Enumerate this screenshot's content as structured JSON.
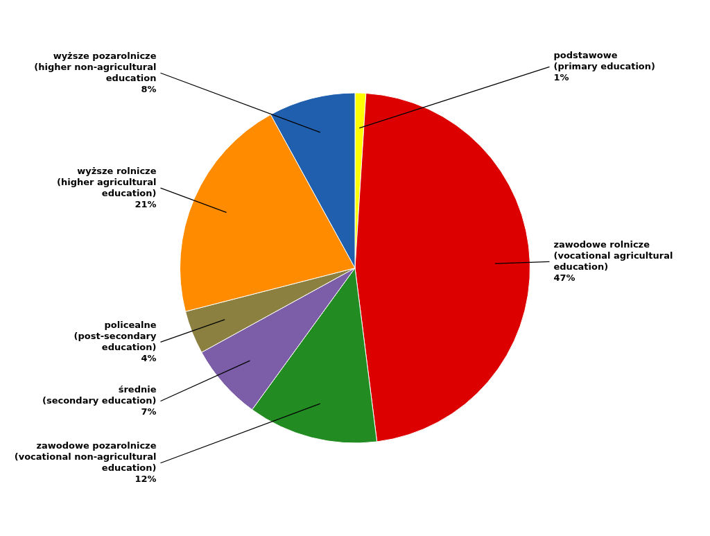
{
  "chart_data": {
    "type": "pie",
    "categories": [
      "podstawowe\n(primary education)\n1%",
      "zawodowe rolnicze\n(vocational agricultural\neducation)\n47%",
      "zawodowe pozarolnicze\n(vocational non-agricultural\neducation)\n12%",
      "średnie\n(secondary education)\n7%",
      "policealne\n(post-secondary\neducation)\n4%",
      "wyższe rolnicze\n(higher agricultural\neducation)\n21%",
      "wyższe pozarolnicze\n(higher non-agricultural\neducation\n8%"
    ],
    "values": [
      1,
      47,
      12,
      7,
      4,
      21,
      8
    ],
    "colors": [
      "#FFFF00",
      "#DD0000",
      "#228B22",
      "#7B5EA7",
      "#8B8040",
      "#FF8C00",
      "#1F5FAD"
    ]
  }
}
